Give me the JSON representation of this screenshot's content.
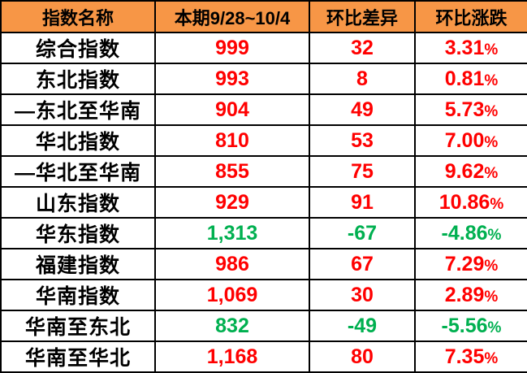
{
  "colors": {
    "header_bg": "#F79646",
    "up_text": "#FF0000",
    "down_text": "#00B050",
    "border": "#000000",
    "row_bg": "#FFFFFF"
  },
  "table": {
    "headers": [
      "指数名称",
      "本期9/28~10/4",
      "环比差异",
      "环比涨跌"
    ],
    "rows": [
      {
        "name": "综合指数",
        "current": "999",
        "diff": "32",
        "change": "3.31%",
        "trend": "up"
      },
      {
        "name": "东北指数",
        "current": "993",
        "diff": "8",
        "change": "0.81%",
        "trend": "up"
      },
      {
        "name": "—东北至华南",
        "current": "904",
        "diff": "49",
        "change": "5.73%",
        "trend": "up"
      },
      {
        "name": "华北指数",
        "current": "810",
        "diff": "53",
        "change": "7.00%",
        "trend": "up"
      },
      {
        "name": "—华北至华南",
        "current": "855",
        "diff": "75",
        "change": "9.62%",
        "trend": "up"
      },
      {
        "name": "山东指数",
        "current": "929",
        "diff": "91",
        "change": "10.86%",
        "trend": "up"
      },
      {
        "name": "华东指数",
        "current": "1,313",
        "diff": "-67",
        "change": "-4.86%",
        "trend": "down"
      },
      {
        "name": "福建指数",
        "current": "986",
        "diff": "67",
        "change": "7.29%",
        "trend": "up"
      },
      {
        "name": "华南指数",
        "current": "1,069",
        "diff": "30",
        "change": "2.89%",
        "trend": "up"
      },
      {
        "name": "华南至东北",
        "current": "832",
        "diff": "-49",
        "change": "-5.56%",
        "trend": "down"
      },
      {
        "name": "华南至华北",
        "current": "1,168",
        "diff": "80",
        "change": "7.35%",
        "trend": "up"
      }
    ]
  },
  "chart_data": {
    "type": "table",
    "title": "",
    "columns": [
      "指数名称",
      "本期9/28~10/4",
      "环比差异",
      "环比涨跌"
    ],
    "rows": [
      [
        "综合指数",
        999,
        32,
        "3.31%"
      ],
      [
        "东北指数",
        993,
        8,
        "0.81%"
      ],
      [
        "—东北至华南",
        904,
        49,
        "5.73%"
      ],
      [
        "华北指数",
        810,
        53,
        "7.00%"
      ],
      [
        "—华北至华南",
        855,
        75,
        "9.62%"
      ],
      [
        "山东指数",
        929,
        91,
        "10.86%"
      ],
      [
        "华东指数",
        1313,
        -67,
        "-4.86%"
      ],
      [
        "福建指数",
        986,
        67,
        "7.29%"
      ],
      [
        "华南指数",
        1069,
        30,
        "2.89%"
      ],
      [
        "华南至东北",
        832,
        -49,
        "-5.56%"
      ],
      [
        "华南至华北",
        1168,
        80,
        "7.35%"
      ]
    ],
    "notes": "positive values shown in red, negative values shown in green"
  }
}
